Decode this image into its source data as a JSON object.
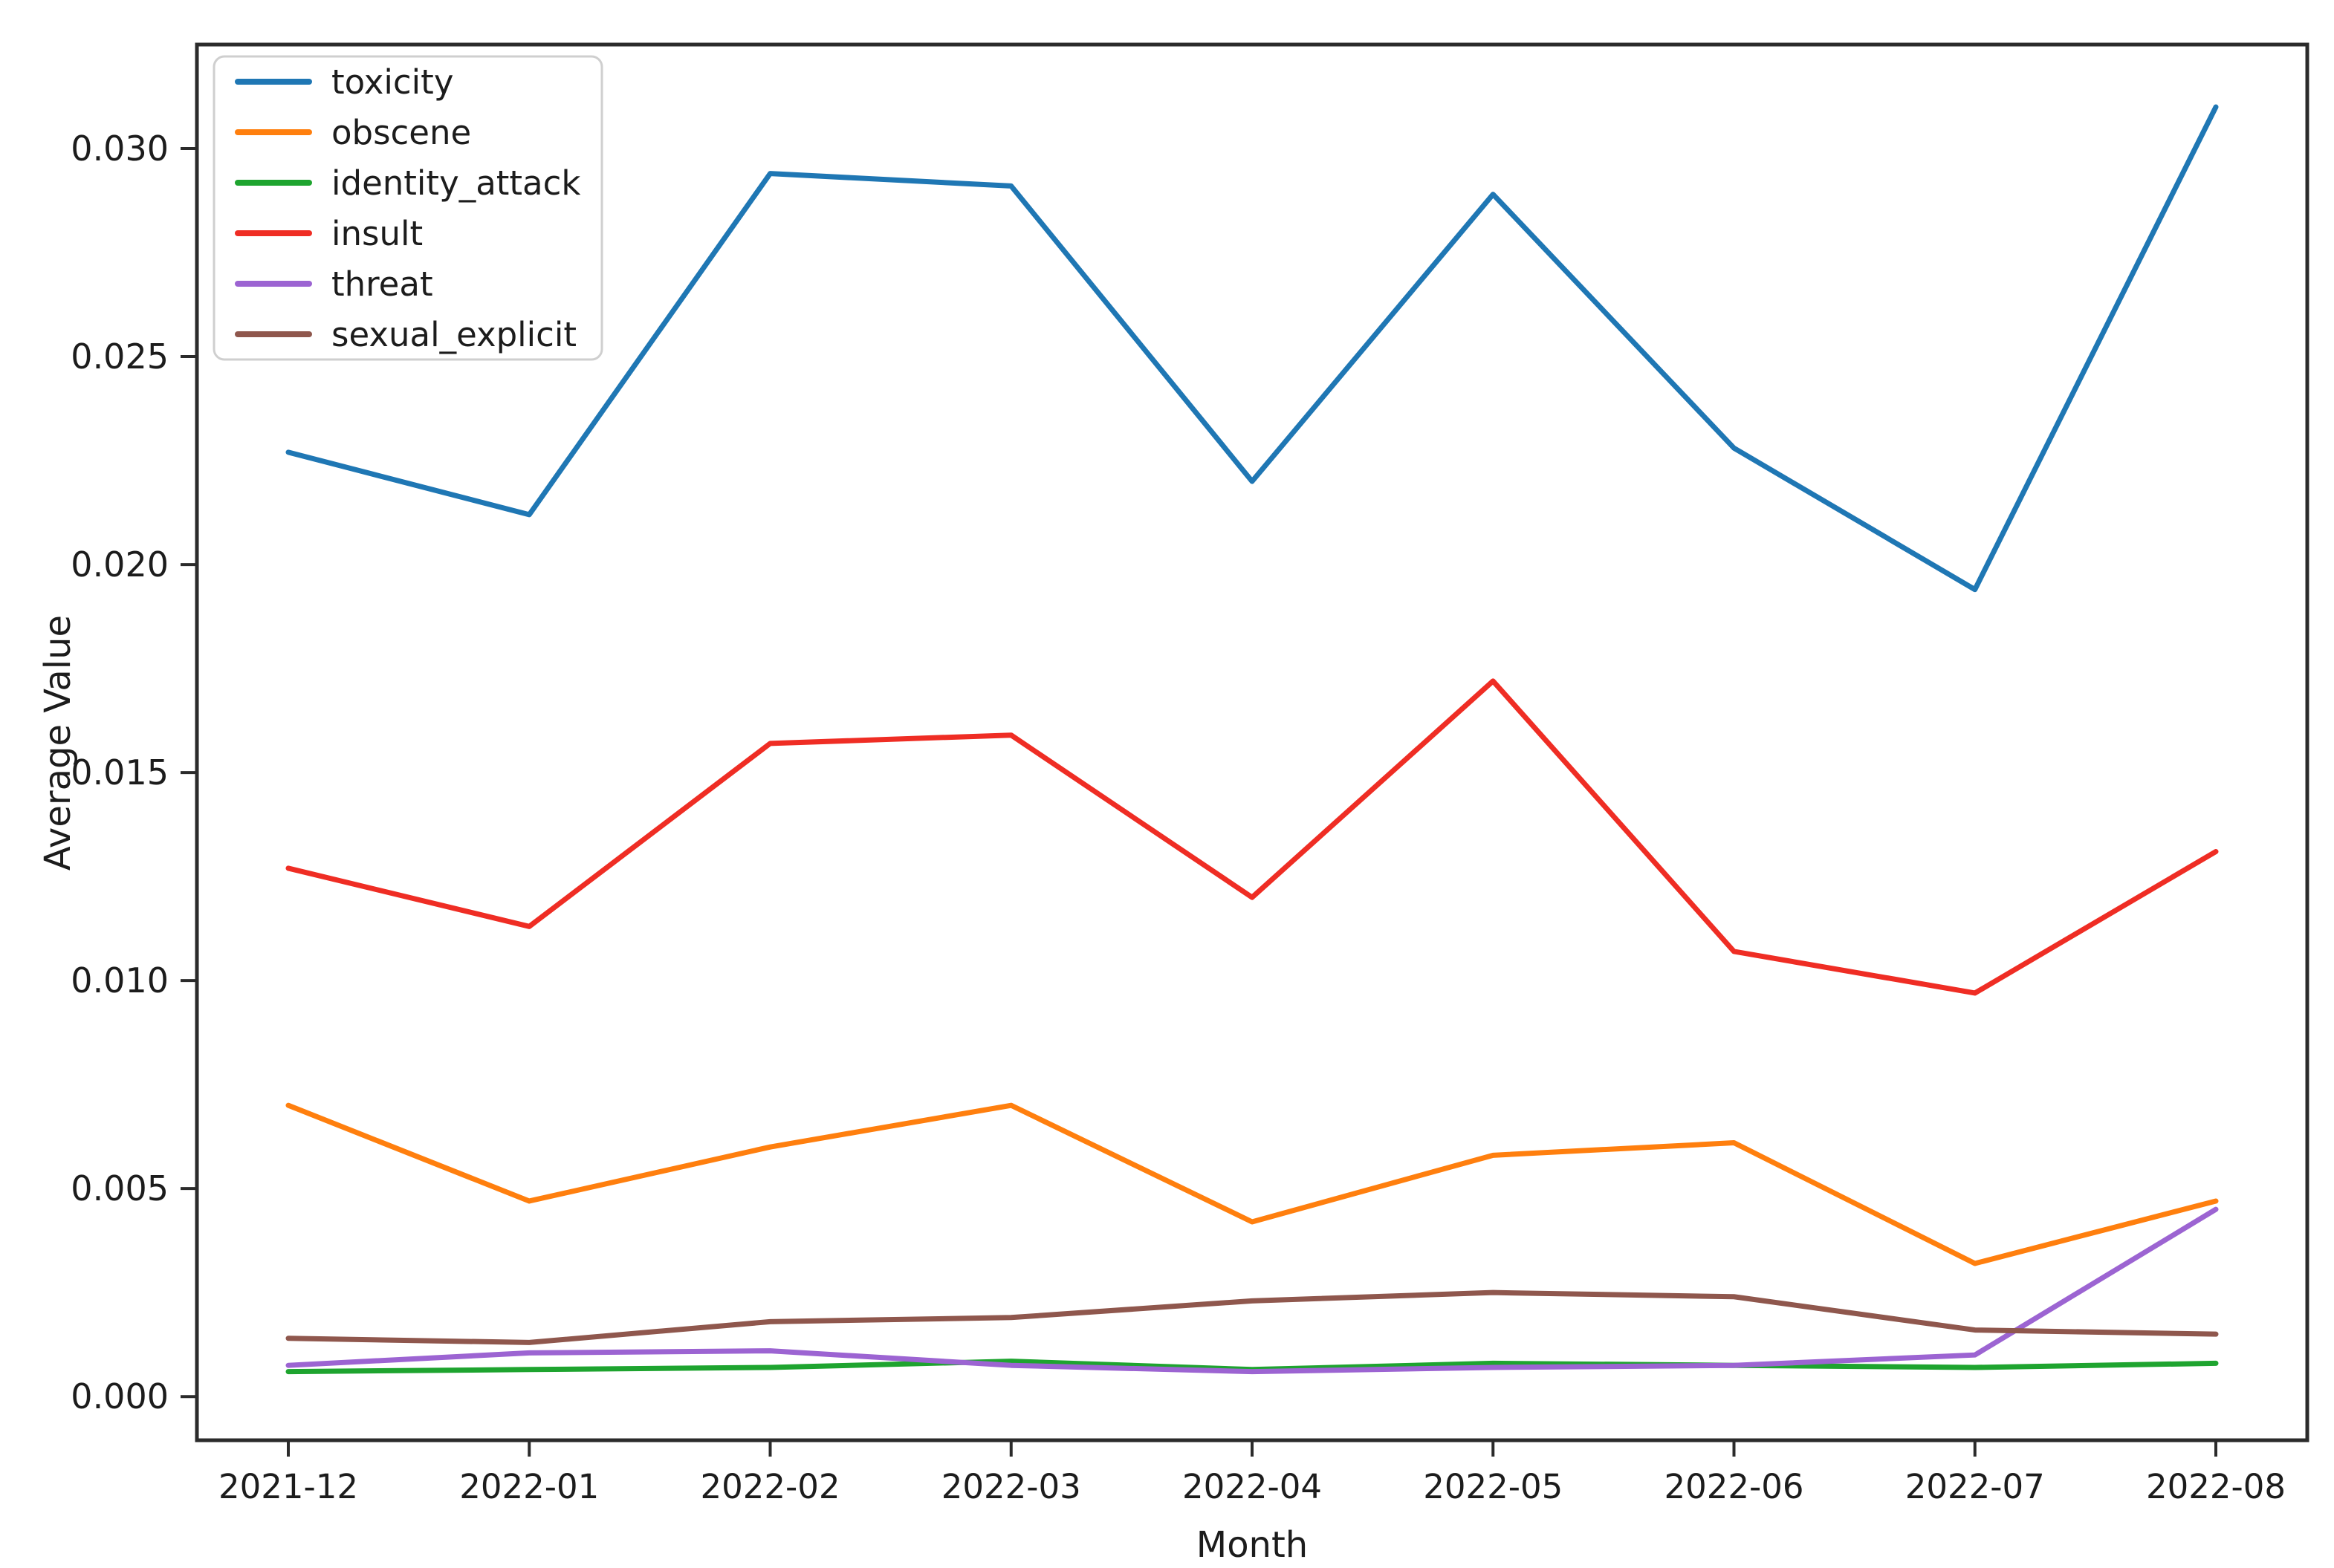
{
  "chart_data": {
    "type": "line",
    "title": "",
    "xlabel": "Month",
    "ylabel": "Average Value",
    "categories": [
      "2021-12",
      "2022-01",
      "2022-02",
      "2022-03",
      "2022-04",
      "2022-05",
      "2022-06",
      "2022-07",
      "2022-08"
    ],
    "series": [
      {
        "name": "toxicity",
        "color": "#1f77b4",
        "values": [
          0.0227,
          0.0212,
          0.0294,
          0.0291,
          0.022,
          0.0289,
          0.0228,
          0.0194,
          0.031
        ]
      },
      {
        "name": "obscene",
        "color": "#ff7f0e",
        "values": [
          0.007,
          0.0047,
          0.006,
          0.007,
          0.0042,
          0.0058,
          0.0061,
          0.0032,
          0.0047
        ]
      },
      {
        "name": "identity_attack",
        "color": "#1ea42f",
        "values": [
          0.0006,
          0.00065,
          0.0007,
          0.00085,
          0.00065,
          0.0008,
          0.00075,
          0.0007,
          0.0008
        ]
      },
      {
        "name": "insult",
        "color": "#ef2d24",
        "values": [
          0.0127,
          0.0113,
          0.0157,
          0.0159,
          0.012,
          0.0172,
          0.0107,
          0.0097,
          0.0131
        ]
      },
      {
        "name": "threat",
        "color": "#9c64d2",
        "values": [
          0.00075,
          0.00105,
          0.0011,
          0.00075,
          0.0006,
          0.0007,
          0.00075,
          0.001,
          0.0045
        ]
      },
      {
        "name": "sexual_explicit",
        "color": "#8f574d",
        "values": [
          0.0014,
          0.0013,
          0.0018,
          0.0019,
          0.0023,
          0.0025,
          0.0024,
          0.0016,
          0.0015
        ]
      }
    ],
    "ylim": [
      -0.00105,
      0.0325
    ],
    "yticks": [
      0,
      0.005,
      0.01,
      0.015,
      0.02,
      0.025,
      0.03
    ],
    "ytick_labels": [
      "0.000",
      "0.005",
      "0.010",
      "0.015",
      "0.020",
      "0.025",
      "0.030"
    ],
    "legend_position": "upper left",
    "grid": false,
    "axis_color": "#2b2b2b",
    "text_color": "#1c1c1c",
    "legend_border_color": "#cfcfcf"
  }
}
